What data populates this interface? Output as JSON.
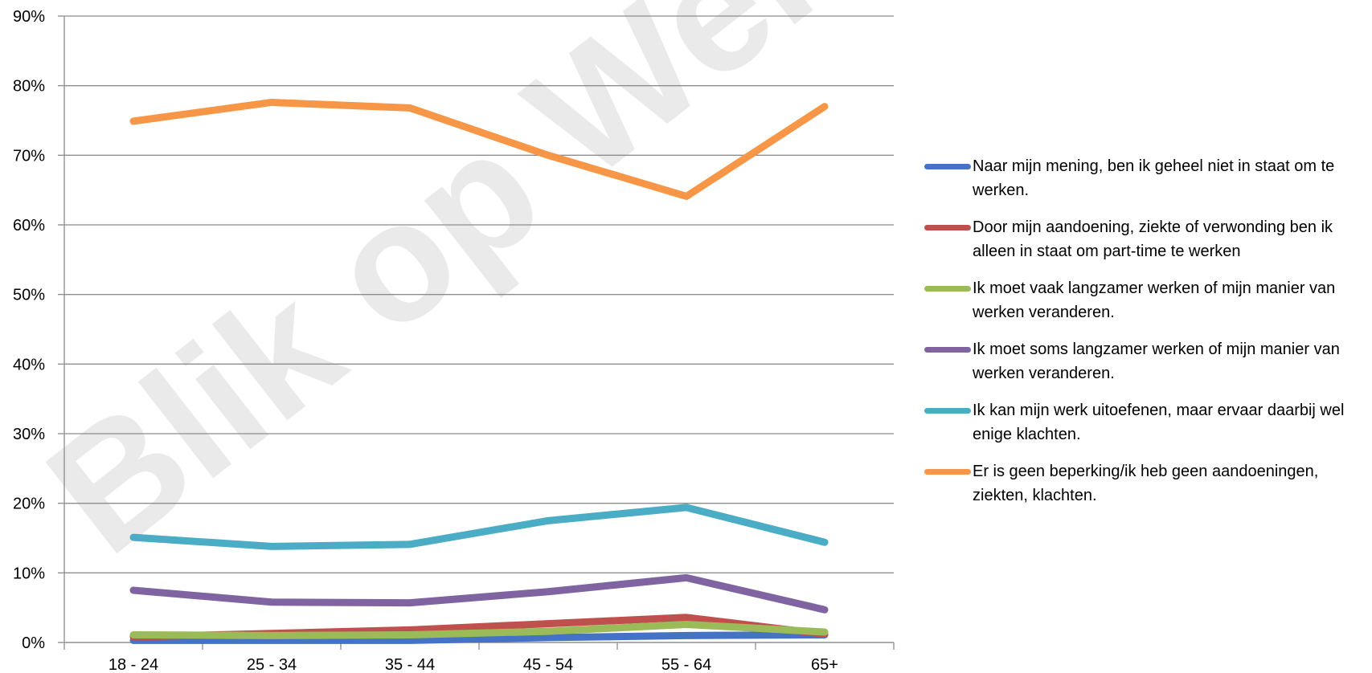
{
  "chart_data": {
    "type": "line",
    "categories": [
      "18 - 24",
      "25 - 34",
      "35 - 44",
      "45 - 54",
      "55 - 64",
      "65+"
    ],
    "ylim": [
      0,
      90
    ],
    "yticks": [
      "0%",
      "10%",
      "20%",
      "30%",
      "40%",
      "50%",
      "60%",
      "70%",
      "80%",
      "90%"
    ],
    "grid": true,
    "legend_position": "right",
    "series": [
      {
        "name": "Naar mijn mening, ben ik geheel niet in staat om te werken.",
        "color": "#4472C4",
        "values": [
          0.3,
          0.3,
          0.3,
          0.7,
          1.0,
          1.1
        ]
      },
      {
        "name": "Door mijn aandoening, ziekte of verwonding ben ik alleen in staat om part-time te werken",
        "color": "#C0504D",
        "values": [
          0.8,
          1.3,
          1.8,
          2.7,
          3.6,
          1.2
        ]
      },
      {
        "name": "Ik moet vaak langzamer werken of mijn manier van werken veranderen.",
        "color": "#9BBB59",
        "values": [
          1.1,
          1.0,
          1.1,
          1.6,
          2.6,
          1.5
        ]
      },
      {
        "name": "Ik moet soms langzamer werken of mijn manier van werken veranderen.",
        "color": "#8064A2",
        "values": [
          7.5,
          5.8,
          5.7,
          7.3,
          9.3,
          4.7
        ]
      },
      {
        "name": "Ik kan mijn werk uitoefenen, maar ervaar daarbij wel enige klachten.",
        "color": "#4BACC6",
        "values": [
          15.1,
          13.8,
          14.1,
          17.5,
          19.4,
          14.4
        ]
      },
      {
        "name": "Er is geen beperking/ik heb geen aandoeningen, ziekten, klachten.",
        "color": "#F79646",
        "values": [
          74.9,
          77.6,
          76.8,
          70.0,
          64.1,
          77.0
        ]
      }
    ]
  },
  "watermark": "Blik op Werk"
}
